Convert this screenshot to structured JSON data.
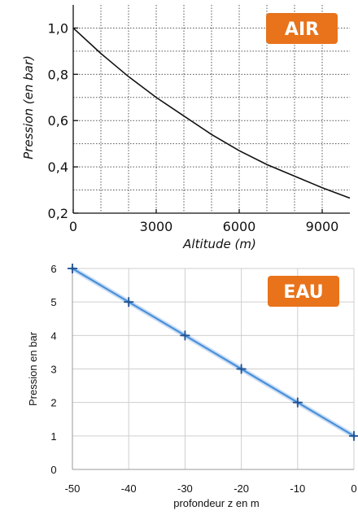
{
  "chart_data": [
    {
      "type": "line",
      "badge": "AIR",
      "badge_color": "#e8731b",
      "line_color": "#111111",
      "grid": true,
      "xlabel": "Altitude (m)",
      "ylabel": "Pression (en bar)",
      "xlim": [
        0,
        10000
      ],
      "ylim": [
        0.2,
        1.1
      ],
      "x_ticks": [
        0,
        3000,
        6000,
        9000
      ],
      "x_tick_labels": [
        "0",
        "3000",
        "6000",
        "9000"
      ],
      "y_ticks": [
        0.2,
        0.4,
        0.6,
        0.8,
        1.0
      ],
      "y_tick_labels": [
        "0,2",
        "0,4",
        "0,6",
        "0,8",
        "1,0"
      ],
      "series": [
        {
          "x": [
            0,
            1000,
            2000,
            3000,
            4000,
            5000,
            6000,
            7000,
            8000,
            9000,
            10000
          ],
          "y": [
            1.0,
            0.89,
            0.79,
            0.7,
            0.62,
            0.54,
            0.47,
            0.41,
            0.36,
            0.31,
            0.265
          ]
        }
      ]
    },
    {
      "type": "line",
      "badge": "EAU",
      "badge_color": "#e8731b",
      "line_color": "#4a90d9",
      "marker": "+",
      "grid": true,
      "xlabel": "profondeur z en m",
      "ylabel": "Pression en bar",
      "xlim": [
        -50,
        0
      ],
      "ylim": [
        0,
        6
      ],
      "x_ticks": [
        -50,
        -40,
        -30,
        -20,
        -10,
        0
      ],
      "x_tick_labels": [
        "-50",
        "-40",
        "-30",
        "-20",
        "-10",
        "0"
      ],
      "y_ticks": [
        0,
        1,
        2,
        3,
        4,
        5,
        6
      ],
      "y_tick_labels": [
        "0",
        "1",
        "2",
        "3",
        "4",
        "5",
        "6"
      ],
      "series": [
        {
          "x": [
            -50,
            -40,
            -30,
            -20,
            -10,
            0
          ],
          "y": [
            6,
            5,
            4,
            3,
            2,
            1
          ]
        }
      ]
    }
  ]
}
